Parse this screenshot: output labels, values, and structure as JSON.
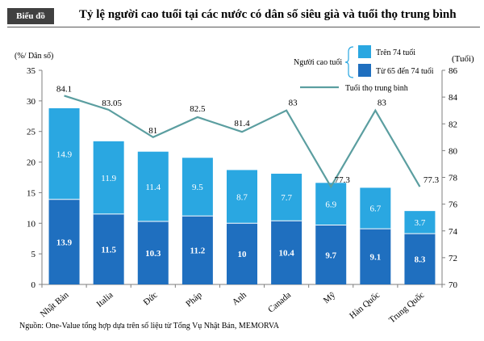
{
  "badge": "Biểu đồ",
  "title": "Tỷ lệ người cao tuổi tại các nước có dân số siêu già và tuổi thọ trung bình",
  "source": "Nguồn: One-Value tổng hợp dựa trên số liệu từ Tổng Vụ Nhật Bản, MEMORVA",
  "colors": {
    "upper": "#2aa7e1",
    "lower": "#1f6fbf",
    "line": "#5b9ea0"
  },
  "chart_data": {
    "type": "bar",
    "stacked": true,
    "categories": [
      "Nhật Bản",
      "Italia",
      "Đức",
      "Pháp",
      "Anh",
      "Canada",
      "Mỹ",
      "Hàn Quốc",
      "Trung Quốc"
    ],
    "series": [
      {
        "name": "Từ 65 đến 74 tuổi",
        "values": [
          13.9,
          11.5,
          10.3,
          11.2,
          10,
          10.4,
          9.7,
          9.1,
          8.3
        ]
      },
      {
        "name": "Trên 74 tuổi",
        "values": [
          14.9,
          11.9,
          11.4,
          9.5,
          8.7,
          7.7,
          6.9,
          6.7,
          3.7
        ]
      }
    ],
    "line_series": {
      "name": "Tuổi thọ trung bình",
      "values": [
        84.1,
        83.05,
        81,
        82.5,
        81.4,
        83,
        77.3,
        83,
        77.3
      ],
      "labels": [
        "84.1",
        "83.05",
        "81",
        "82.5",
        "81.4",
        "83",
        "77.3",
        "83",
        "77.3"
      ]
    },
    "legend_group_label": "Người cao tuổi",
    "ylabel_left": "(%/ Dân số)",
    "ylabel_right": "(Tuổi)",
    "ylim_left": [
      0,
      35
    ],
    "yticks_left": [
      0,
      5,
      10,
      15,
      20,
      25,
      30,
      35
    ],
    "ylim_right": [
      70,
      86
    ],
    "yticks_right": [
      70,
      72,
      74,
      76,
      78,
      80,
      82,
      84,
      86
    ],
    "grid": false,
    "legend_position": "top-right"
  }
}
